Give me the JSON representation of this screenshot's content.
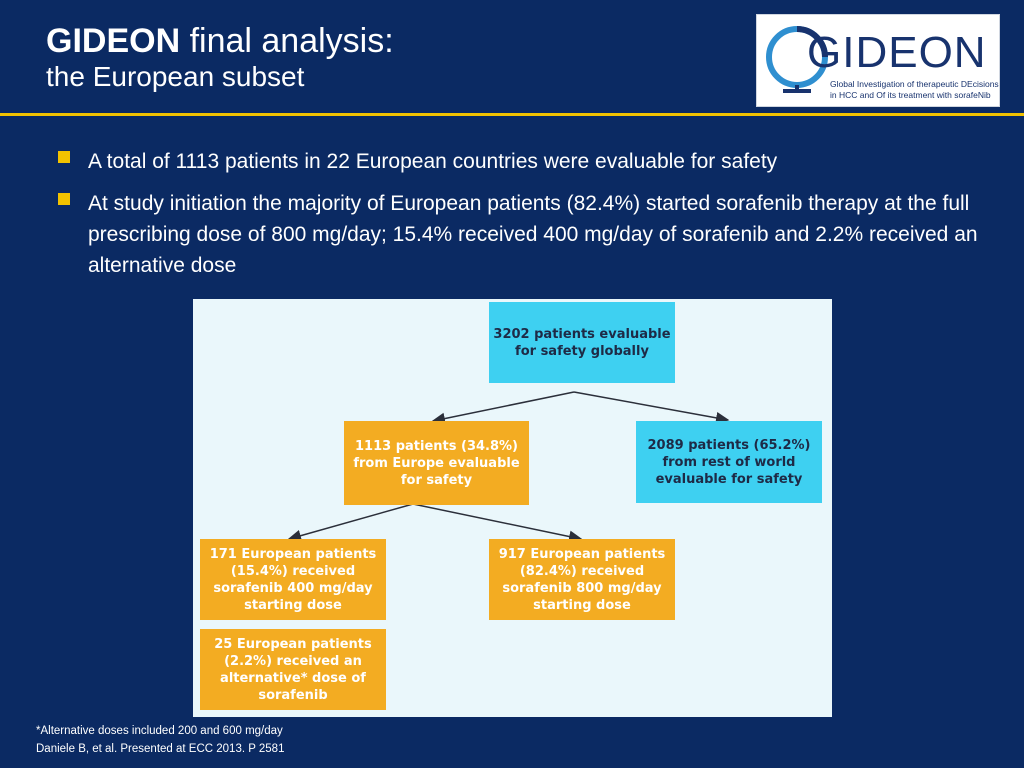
{
  "header": {
    "title_bold": "GIDEON",
    "title_rest": " final analysis:",
    "subtitle": "the European subset"
  },
  "logo": {
    "word": "GIDEON",
    "tagline_1": "Global Investigation of therapeutic DEcisions",
    "tagline_2": "in HCC and Of its treatment with sorafeNib"
  },
  "bullets": [
    "A total of 1113 patients in 22 European countries were evaluable for safety",
    "At study initiation the majority of European patients (82.4%) started sorafenib therapy at the full prescribing dose of 800 mg/day; 15.4% received 400 mg/day of sorafenib and 2.2% received an alternative dose"
  ],
  "flowchart": {
    "global": "3202 patients evaluable for safety globally",
    "europe": "1113 patients (34.8%) from Europe evaluable for safety",
    "rest_of_world": "2089 patients (65.2%) from rest of world evaluable for safety",
    "dose_400": "171 European patients (15.4%) received sorafenib 400 mg/day starting dose",
    "dose_800": "917 European patients (82.4%) received sorafenib 800 mg/day starting dose",
    "dose_alt": "25 European patients (2.2%) received an alternative* dose of sorafenib"
  },
  "footer": {
    "footnote": "*Alternative doses included 200 and 600 mg/day",
    "citation": "Daniele B, et al. Presented at ECC 2013. P 2581"
  },
  "colors": {
    "background": "#0b2a63",
    "accent": "#f2c200",
    "cyan_box": "#3ed0f1",
    "orange_box": "#f3ac22"
  }
}
